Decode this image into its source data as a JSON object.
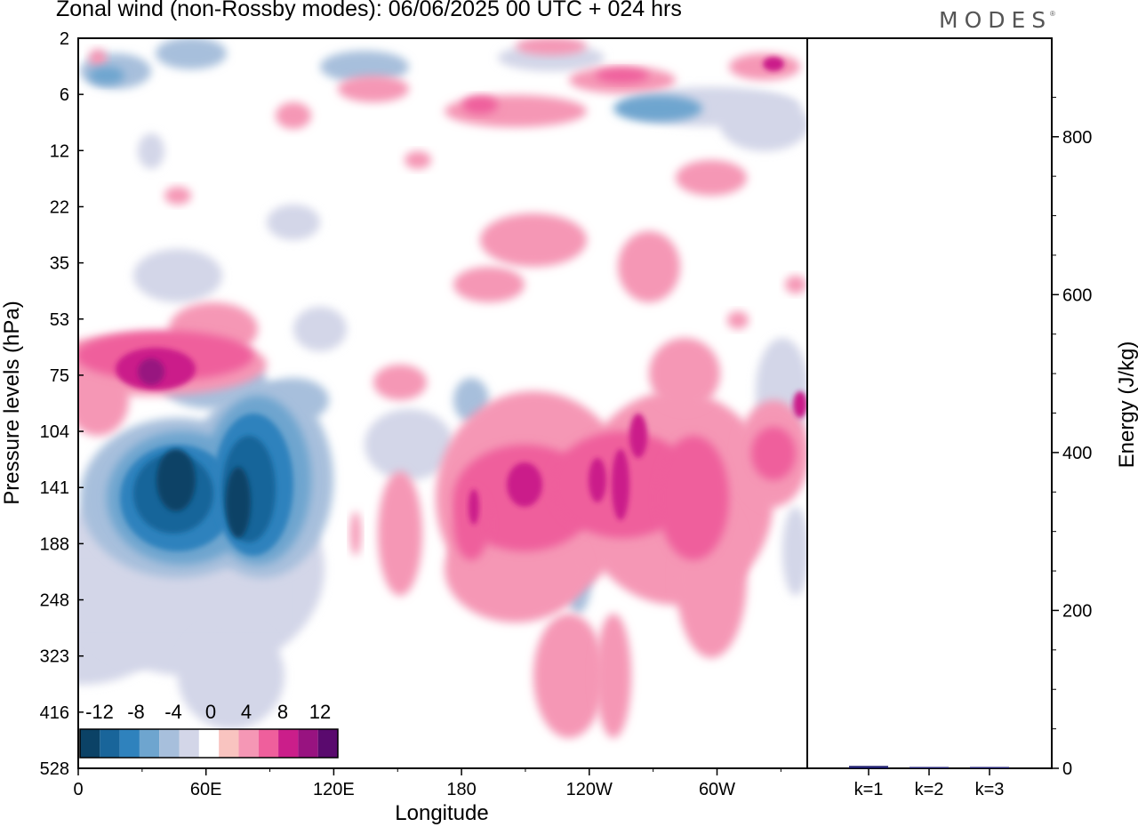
{
  "title": "Zonal wind (non-Rossby modes):  06/06/2025  00 UTC  + 024 hrs",
  "brand": "MODES",
  "brand_mark": "®",
  "colors": {
    "neg": [
      "#0b4266",
      "#19659a",
      "#2f82bd",
      "#6ea5cf",
      "#a7bfdc",
      "#d3d6e8"
    ],
    "zero": "#ffffff",
    "pos": [
      "#f9c4c0",
      "#f597b5",
      "#ef5f9c",
      "#cb1e8a",
      "#981380",
      "#5a0a6e"
    ],
    "bar": "#1f1f6e"
  },
  "chart_data": [
    {
      "type": "heatmap",
      "title": "Zonal wind (non-Rossby modes):  06/06/2025  00 UTC  + 024 hrs",
      "xlabel": "Longitude",
      "ylabel": "Pressure levels (hPa)",
      "x_ticks": [
        "0",
        "60E",
        "120E",
        "180",
        "120W",
        "60W"
      ],
      "y_ticks": [
        "2",
        "6",
        "12",
        "22",
        "35",
        "53",
        "75",
        "104",
        "141",
        "188",
        "248",
        "323",
        "416",
        "528"
      ],
      "colorbar": {
        "labels": [
          "-12",
          "-8",
          "-4",
          "0",
          "4",
          "8",
          "12"
        ],
        "levels": [
          -14,
          -12,
          -10,
          -8,
          -6,
          -4,
          -2,
          2,
          4,
          6,
          8,
          10,
          12,
          14
        ]
      },
      "features": [
        {
          "lon": 48,
          "level": 141,
          "value": -12
        },
        {
          "lon": 80,
          "level": 141,
          "value": -12
        },
        {
          "lon": 40,
          "level": 75,
          "value": 8
        },
        {
          "lon": 255,
          "level": 141,
          "value": 7
        },
        {
          "lon": 300,
          "level": 141,
          "value": 7
        },
        {
          "lon": 200,
          "level": 141,
          "value": 6
        }
      ]
    },
    {
      "type": "bar",
      "categories": [
        "k=1",
        "k=2",
        "k=3"
      ],
      "values": [
        3,
        1,
        1
      ],
      "ylabel": "Energy (J/kg)",
      "y_ticks": [
        "0",
        "200",
        "400",
        "600",
        "800"
      ],
      "ylim": [
        0,
        900
      ]
    }
  ]
}
